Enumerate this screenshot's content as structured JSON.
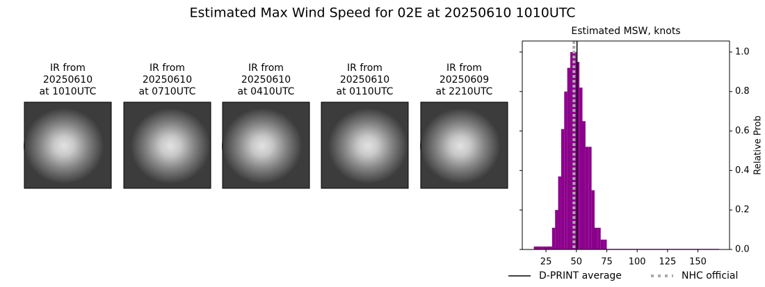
{
  "title": "Estimated Max Wind Speed for 02E at 20250610 1010UTC",
  "panels": [
    {
      "lines": [
        "IR from",
        "20250610",
        "at 1010UTC"
      ]
    },
    {
      "lines": [
        "IR from",
        "20250610",
        "at 0710UTC"
      ]
    },
    {
      "lines": [
        "IR from",
        "20250610",
        "at 0410UTC"
      ]
    },
    {
      "lines": [
        "IR from",
        "20250610",
        "at 0110UTC"
      ]
    },
    {
      "lines": [
        "IR from",
        "20250609",
        "at 2210UTC"
      ]
    }
  ],
  "chart_data": {
    "type": "histogram",
    "title": "Estimated MSW, knots",
    "y_label": "Relative Prob",
    "bins": [
      15,
      17.5,
      20,
      22.5,
      25,
      27.5,
      30,
      32.5,
      35,
      37.5,
      40,
      42.5,
      45,
      47.5,
      50,
      52.5,
      55,
      57.5,
      60,
      62.5,
      65,
      67.5,
      70,
      72.5,
      75,
      167.5
    ],
    "values": [
      0.015,
      0.015,
      0.015,
      0.015,
      0.015,
      0.015,
      0.11,
      0.2,
      0.37,
      0.61,
      0.8,
      0.92,
      1.0,
      1.0,
      0.95,
      0.82,
      0.65,
      0.52,
      0.52,
      0.3,
      0.11,
      0.11,
      0.05,
      0.05,
      0.003
    ],
    "color": "#8b008b",
    "xlim": [
      5.5,
      176
    ],
    "xticks": [
      25,
      50,
      75,
      100,
      125,
      150
    ],
    "ylim": [
      0,
      1.056
    ],
    "yticks": [
      {
        "value": 0,
        "label": "0.0"
      },
      {
        "value": 0.2,
        "label": "0.2"
      },
      {
        "value": 0.4,
        "label": "0.4"
      },
      {
        "value": 0.6,
        "label": "0.6"
      },
      {
        "value": 0.8,
        "label": "0.8"
      },
      {
        "value": 1.0,
        "label": "1.0"
      }
    ],
    "reference_lines": [
      {
        "name": "D-PRINT average",
        "value": 50.5,
        "color": "#000000",
        "style": "solid"
      },
      {
        "name": "NHC official",
        "value": 48,
        "color": "#aaaaaa",
        "style": "dotted"
      }
    ]
  }
}
